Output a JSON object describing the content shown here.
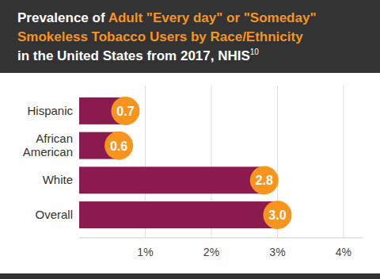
{
  "chart_data": {
    "type": "bar",
    "orientation": "horizontal",
    "title": "Prevalence of Adult \"Every day\" or \"Someday\" Smokeless Tobacco Users by Race/Ethnicity in the United States from 2017, NHIS",
    "annotations": [
      "10"
    ],
    "categories": [
      "Hispanic",
      "African American",
      "White",
      "Overall"
    ],
    "values": [
      0.7,
      0.6,
      2.8,
      3.0
    ],
    "value_labels": [
      "0.7",
      "0.6",
      "2.8",
      "3.0"
    ],
    "color": "#8b1a4e",
    "xlim": [
      0,
      4.3
    ],
    "xticks": [
      {
        "value": 1,
        "label": "1%"
      },
      {
        "value": 2,
        "label": "2%"
      },
      {
        "value": 3,
        "label": "3%"
      },
      {
        "value": 4,
        "label": "4%"
      }
    ],
    "grid": true,
    "data_labels": true
  }
}
